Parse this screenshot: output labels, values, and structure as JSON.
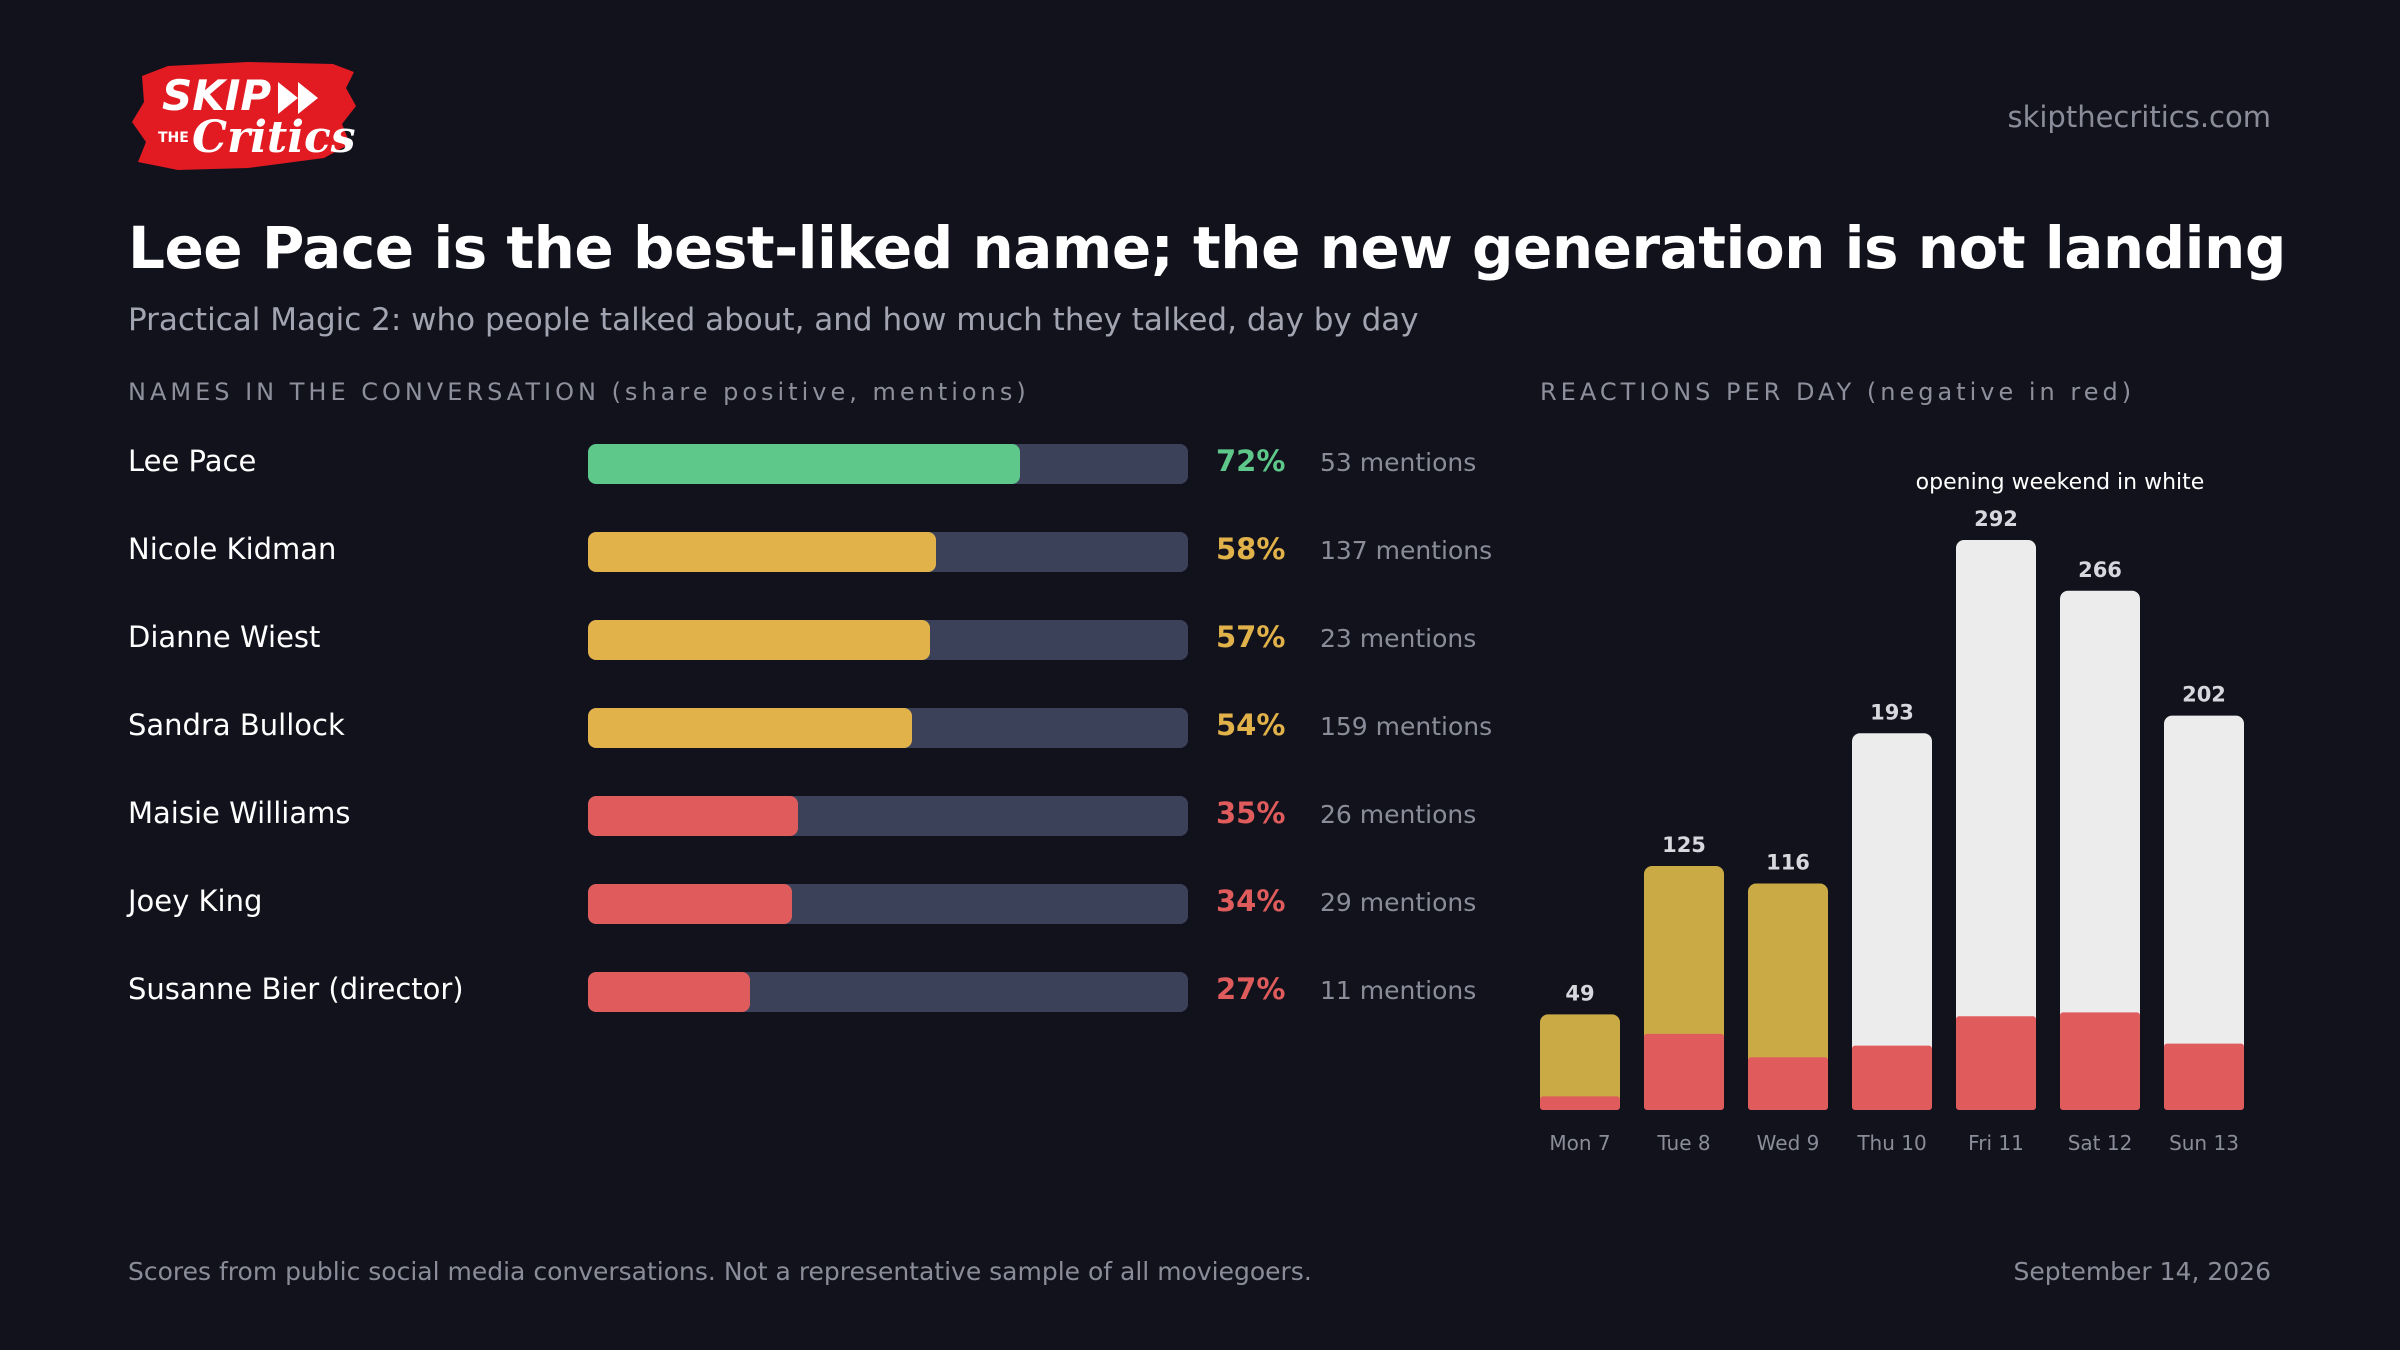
{
  "header": {
    "logo": {
      "top_text": "SKIP",
      "small_text": "THE",
      "bottom_text": "Critics"
    },
    "site": "skipthecritics.com",
    "title": "Lee Pace is the best-liked name; the new generation is not landing",
    "subtitle": "Practical Magic 2: who people talked about, and how much they talked, day by day"
  },
  "names_section": {
    "label": "NAMES IN THE CONVERSATION (share positive, mentions)"
  },
  "reactions_section": {
    "label": "REACTIONS PER DAY (negative in red)"
  },
  "colors": {
    "green": "#5ec88a",
    "yellow": "#e2b24a",
    "red": "#e05c5c",
    "track": "#3a4159",
    "opening_weekend": "#ececec",
    "weekday": "#c9aa45"
  },
  "chart_data": [
    {
      "type": "bar",
      "orientation": "horizontal",
      "categories": [
        "Lee Pace",
        "Nicole Kidman",
        "Dianne Wiest",
        "Sandra Bullock",
        "Maisie Williams",
        "Joey King",
        "Susanne Bier (director)"
      ],
      "values": [
        72,
        58,
        57,
        54,
        35,
        34,
        27
      ],
      "value_labels": [
        "72%",
        "58%",
        "57%",
        "54%",
        "35%",
        "34%",
        "27%"
      ],
      "mentions": [
        "53 mentions",
        "137 mentions",
        "23 mentions",
        "159 mentions",
        "26 mentions",
        "29 mentions",
        "11 mentions"
      ],
      "series_colors": [
        "green",
        "yellow",
        "yellow",
        "yellow",
        "red",
        "red",
        "red"
      ],
      "xlim": [
        0,
        100
      ]
    },
    {
      "type": "bar",
      "orientation": "vertical",
      "stacked": true,
      "categories": [
        "Mon 7",
        "Tue 8",
        "Wed 9",
        "Thu 10",
        "Fri 11",
        "Sat 12",
        "Sun 13"
      ],
      "totals": [
        49,
        125,
        116,
        193,
        292,
        266,
        202
      ],
      "negative": [
        7,
        39,
        27,
        33,
        48,
        50,
        34
      ],
      "opening_weekend": [
        false,
        false,
        false,
        true,
        true,
        true,
        true
      ],
      "annotation": "opening weekend in white",
      "ylim": [
        0,
        292
      ]
    }
  ],
  "footer": {
    "note": "Scores from public social media conversations. Not a representative sample of all moviegoers.",
    "date": "September 14, 2026"
  }
}
